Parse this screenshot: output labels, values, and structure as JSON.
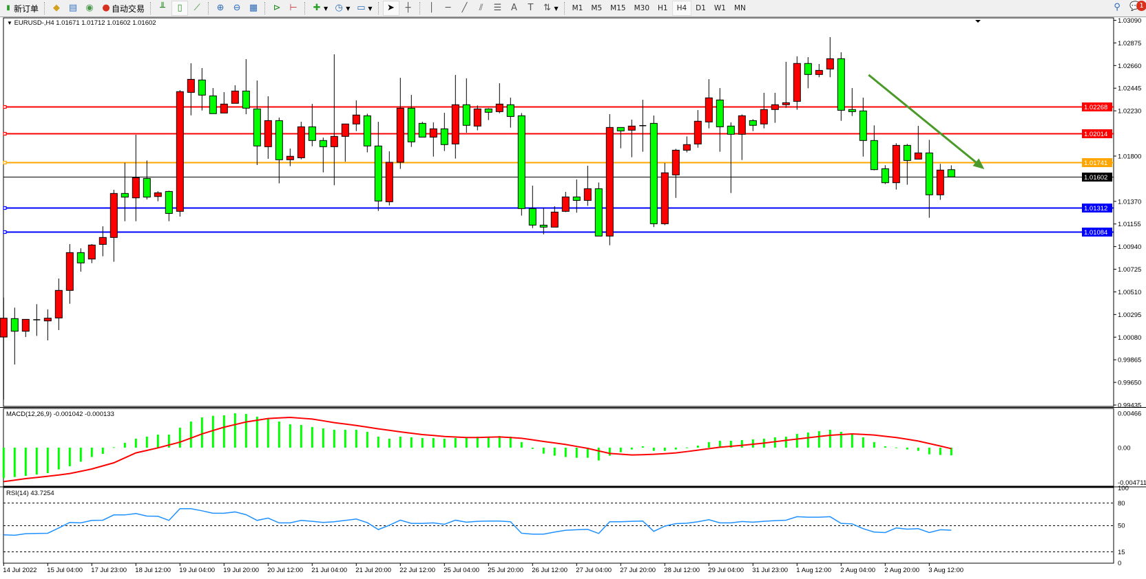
{
  "toolbar": {
    "new_order_label": "新订单",
    "auto_trading_label": "自动交易",
    "icons": [
      "new-order-icon",
      "market-watch-icon",
      "navigator-icon",
      "signals-icon",
      "auto-trading-icon",
      "bar-chart-icon",
      "candlestick-icon",
      "line-chart-icon",
      "zoom-in-icon",
      "zoom-out-icon",
      "tile-windows-icon",
      "chart-shift-icon",
      "autoscroll-icon",
      "indicators-icon",
      "periods-icon",
      "templates-icon",
      "cursor-icon",
      "crosshair-icon",
      "vertical-line-icon",
      "horizontal-line-icon",
      "trendline-icon",
      "fibonacci-icon",
      "fibo-fan-icon",
      "text-icon",
      "text-label-icon",
      "arrows-icon",
      "search-icon",
      "notification-icon"
    ],
    "timeframes": [
      "M1",
      "M5",
      "M15",
      "M30",
      "H1",
      "H4",
      "D1",
      "W1",
      "MN"
    ],
    "active_timeframe": "H4",
    "notification_count": "1"
  },
  "chart": {
    "header": "EURUSD-,H4  1.01671 1.01712 1.01602 1.01602",
    "macd_label": "MACD(12,26,9) -0.001042 -0.000133",
    "rsi_label": "RSI(14) 43.7254"
  },
  "colors": {
    "bull": "#ff0000",
    "bear": "#00ff00",
    "resistance": "#ff0000",
    "pivot": "#ffa500",
    "support": "#0000ff",
    "current": "#000000",
    "macd_hist": "#00ff00",
    "macd_signal": "#ff0000",
    "rsi": "#1e90ff",
    "arrow": "#4a9a2a"
  },
  "chart_data": [
    {
      "type": "candlestick",
      "symbol": "EURUSD-",
      "timeframe": "H4",
      "bullish_color": "red",
      "bearish_color": "green",
      "ylim": [
        0.99435,
        1.0309
      ],
      "y_ticks": [
        "1.03090",
        "1.02875",
        "1.02660",
        "1.02445",
        "1.02230",
        "1.01800",
        "1.01370",
        "1.01155",
        "1.00940",
        "1.00725",
        "1.00510",
        "1.00295",
        "1.00080",
        "0.99865",
        "0.99650",
        "0.99435"
      ],
      "x_tick_labels": [
        {
          "bar": 0,
          "label": "14 Jul 2022"
        },
        {
          "bar": 4,
          "label": "15 Jul 04:00"
        },
        {
          "bar": 8,
          "label": "17 Jul 23:00"
        },
        {
          "bar": 12,
          "label": "18 Jul 12:00"
        },
        {
          "bar": 16,
          "label": "19 Jul 04:00"
        },
        {
          "bar": 20,
          "label": "19 Jul 20:00"
        },
        {
          "bar": 24,
          "label": "20 Jul 12:00"
        },
        {
          "bar": 28,
          "label": "21 Jul 04:00"
        },
        {
          "bar": 32,
          "label": "21 Jul 20:00"
        },
        {
          "bar": 36,
          "label": "22 Jul 12:00"
        },
        {
          "bar": 40,
          "label": "25 Jul 04:00"
        },
        {
          "bar": 44,
          "label": "25 Jul 20:00"
        },
        {
          "bar": 48,
          "label": "26 Jul 12:00"
        },
        {
          "bar": 52,
          "label": "27 Jul 04:00"
        },
        {
          "bar": 56,
          "label": "27 Jul 20:00"
        },
        {
          "bar": 60,
          "label": "28 Jul 12:00"
        },
        {
          "bar": 64,
          "label": "29 Jul 04:00"
        },
        {
          "bar": 68,
          "label": "31 Jul 23:00"
        },
        {
          "bar": 72,
          "label": "1 Aug 12:00"
        },
        {
          "bar": 76,
          "label": "2 Aug 04:00"
        },
        {
          "bar": 80,
          "label": "2 Aug 20:00"
        },
        {
          "bar": 84,
          "label": "3 Aug 12:00"
        }
      ],
      "levels": [
        {
          "price": "1.02268",
          "kind": "resistance"
        },
        {
          "price": "1.02014",
          "kind": "resistance"
        },
        {
          "price": "1.01741",
          "kind": "pivot"
        },
        {
          "price": "1.01602",
          "kind": "current"
        },
        {
          "price": "1.01312",
          "kind": "support"
        },
        {
          "price": "1.01084",
          "kind": "support"
        }
      ],
      "arrow": {
        "from": {
          "bar": 78.5,
          "price": 1.02571
        },
        "to": {
          "bar": 89,
          "price": 1.01676
        }
      },
      "ohlc": [
        [
          1.00081,
          1.00456,
          0.99485,
          1.0026
        ],
        [
          1.00256,
          1.0036,
          0.9982,
          1.00136
        ],
        [
          1.00136,
          1.00249,
          1.00081,
          1.00249
        ],
        [
          1.00245,
          1.00393,
          1.00092,
          1.00245
        ],
        [
          1.00234,
          1.00343,
          1.00049,
          1.0026
        ],
        [
          1.00262,
          1.00637,
          1.00147,
          1.00524
        ],
        [
          1.00524,
          1.00964,
          1.00397,
          1.00883
        ],
        [
          1.00883,
          1.00924,
          1.00702,
          1.00785
        ],
        [
          1.00822,
          1.00964,
          1.00783,
          1.00955
        ],
        [
          1.00961,
          1.01133,
          1.00848,
          1.01027
        ],
        [
          1.01027,
          1.0148,
          1.00796,
          1.01445
        ],
        [
          1.01445,
          1.01737,
          1.01181,
          1.0141
        ],
        [
          1.01403,
          1.02002,
          1.01181,
          1.01595
        ],
        [
          1.01588,
          1.01758,
          1.01388,
          1.0141
        ],
        [
          1.01416,
          1.01466,
          1.01371,
          1.01451
        ],
        [
          1.01464,
          1.01471,
          1.01181,
          1.01255
        ],
        [
          1.01275,
          1.02427,
          1.01225,
          1.02412
        ],
        [
          1.02405,
          1.02682,
          1.02187,
          1.02529
        ],
        [
          1.02523,
          1.02636,
          1.02233,
          1.02379
        ],
        [
          1.02372,
          1.02446,
          1.02203,
          1.02203
        ],
        [
          1.02209,
          1.02407,
          1.02209,
          1.02294
        ],
        [
          1.02301,
          1.02473,
          1.02301,
          1.02418
        ],
        [
          1.02418,
          1.02721,
          1.02198,
          1.02255
        ],
        [
          1.02248,
          1.02518,
          1.01715,
          1.01896
        ],
        [
          1.01889,
          1.02368,
          1.01774,
          1.02137
        ],
        [
          1.02137,
          1.02166,
          1.01541,
          1.01765
        ],
        [
          1.01765,
          1.01872,
          1.01704,
          1.01798
        ],
        [
          1.01784,
          1.02126,
          1.01769,
          1.02078
        ],
        [
          1.02078,
          1.02296,
          1.01893,
          1.01948
        ],
        [
          1.01948,
          1.01976,
          1.01645,
          1.01889
        ],
        [
          1.01889,
          1.02767,
          1.01523,
          1.01987
        ],
        [
          1.01987,
          1.02105,
          1.01747,
          1.02105
        ],
        [
          1.02105,
          1.02329,
          1.02037,
          1.0219
        ],
        [
          1.02183,
          1.02203,
          1.01835,
          1.01896
        ],
        [
          1.01896,
          1.02126,
          1.01279,
          1.01373
        ],
        [
          1.01366,
          1.01845,
          1.01331,
          1.01741
        ],
        [
          1.01741,
          1.02544,
          1.01678,
          1.02255
        ],
        [
          1.02255,
          1.02381,
          1.01887,
          1.01935
        ],
        [
          1.02111,
          1.02126,
          1.0198,
          1.0198
        ],
        [
          1.0198,
          1.0212,
          1.01795,
          1.02059
        ],
        [
          1.02059,
          1.02211,
          1.01848,
          1.01909
        ],
        [
          1.01915,
          1.02571,
          1.01776,
          1.02288
        ],
        [
          1.02288,
          1.02538,
          1.02022,
          1.02092
        ],
        [
          1.02085,
          1.02281,
          1.02044,
          1.02248
        ],
        [
          1.02248,
          1.02255,
          1.02142,
          1.02216
        ],
        [
          1.02222,
          1.02492,
          1.02207,
          1.02294
        ],
        [
          1.02288,
          1.02355,
          1.0207,
          1.02176
        ],
        [
          1.02183,
          1.02209,
          1.01234,
          1.01301
        ],
        [
          1.01301,
          1.01519,
          1.01116,
          1.01144
        ],
        [
          1.01144,
          1.01308,
          1.01057,
          1.01125
        ],
        [
          1.01125,
          1.01323,
          1.01125,
          1.01268
        ],
        [
          1.01275,
          1.0146,
          1.01268,
          1.01412
        ],
        [
          1.01412,
          1.01578,
          1.01262,
          1.01379
        ],
        [
          1.01379,
          1.01708,
          1.01327,
          1.0149
        ],
        [
          1.0149,
          1.01549,
          1.0104,
          1.0104
        ],
        [
          1.0104,
          1.02198,
          1.00953,
          1.02072
        ],
        [
          1.02072,
          1.02072,
          1.01874,
          1.02039
        ],
        [
          1.02046,
          1.02146,
          1.01789,
          1.02085
        ],
        [
          1.02089,
          1.02335,
          1.01841,
          1.02089
        ],
        [
          1.02111,
          1.02185,
          1.01125,
          1.01157
        ],
        [
          1.01157,
          1.01734,
          1.01144,
          1.01641
        ],
        [
          1.01621,
          1.01869,
          1.01403,
          1.01856
        ],
        [
          1.01856,
          1.01987,
          1.01835,
          1.01909
        ],
        [
          1.01915,
          1.02237,
          1.0188,
          1.02131
        ],
        [
          1.02124,
          1.02531,
          1.02063,
          1.02353
        ],
        [
          1.02333,
          1.02446,
          1.01841,
          1.02078
        ],
        [
          1.02085,
          1.0212,
          1.01449,
          1.02007
        ],
        [
          1.02007,
          1.02196,
          1.01763,
          1.02183
        ],
        [
          1.02137,
          1.0215,
          1.02037,
          1.02092
        ],
        [
          1.02105,
          1.02401,
          1.02063,
          1.02242
        ],
        [
          1.02242,
          1.02401,
          1.02116,
          1.02288
        ],
        [
          1.02288,
          1.02695,
          1.02259,
          1.02307
        ],
        [
          1.0232,
          1.02747,
          1.0224,
          1.0268
        ],
        [
          1.0268,
          1.0274,
          1.02444,
          1.02575
        ],
        [
          1.02575,
          1.02675,
          1.02549,
          1.02614
        ],
        [
          1.02627,
          1.0293,
          1.02549,
          1.02725
        ],
        [
          1.02725,
          1.02786,
          1.02135,
          1.02235
        ],
        [
          1.02242,
          1.02446,
          1.02181,
          1.02222
        ],
        [
          1.02229,
          1.02355,
          1.01795,
          1.01948
        ],
        [
          1.01948,
          1.02092,
          1.01665,
          1.01671
        ],
        [
          1.0168,
          1.01713,
          1.01534,
          1.01547
        ],
        [
          1.01547,
          1.01922,
          1.01482,
          1.01902
        ],
        [
          1.01902,
          1.01915,
          1.01528,
          1.01758
        ],
        [
          1.01771,
          1.02087,
          1.01771,
          1.0183
        ],
        [
          1.0183,
          1.01954,
          1.01214,
          1.01432
        ],
        [
          1.01432,
          1.01726,
          1.01384,
          1.01667
        ],
        [
          1.01671,
          1.01712,
          1.01602,
          1.01602
        ]
      ]
    },
    {
      "type": "bar+line",
      "name": "MACD(12,26,9)",
      "ylim": [
        -0.004711,
        0.00466
      ],
      "y_ticks": [
        "0.00466",
        "0.00",
        "-0.004711"
      ],
      "histogram": [
        -0.00413,
        -0.00398,
        -0.00382,
        -0.00364,
        -0.00345,
        -0.00295,
        -0.00252,
        -0.0019,
        -0.00127,
        -0.00084,
        6e-05,
        0.00065,
        0.00121,
        0.00149,
        0.00177,
        0.00177,
        0.0027,
        0.00354,
        0.0041,
        0.00432,
        0.00438,
        0.00466,
        0.00457,
        0.00419,
        0.00395,
        0.00354,
        0.00317,
        0.00308,
        0.0028,
        0.00261,
        0.00242,
        0.00242,
        0.00242,
        0.00214,
        0.00149,
        0.00121,
        0.00149,
        0.0014,
        0.0013,
        0.0013,
        0.00121,
        0.0013,
        0.0013,
        0.00149,
        0.00149,
        0.00158,
        0.00149,
        0.00075,
        -0.00016,
        -0.00081,
        -0.00109,
        -0.00127,
        -0.00137,
        -0.00137,
        -0.00174,
        -0.00109,
        -0.00062,
        -0.00025,
        0.00019,
        -0.00043,
        -0.00043,
        -0.00025,
        3e-05,
        0.00028,
        0.00075,
        0.00093,
        0.00093,
        0.00103,
        0.00112,
        0.00121,
        0.0014,
        0.00149,
        0.00186,
        0.00205,
        0.00224,
        0.00242,
        0.00214,
        0.00177,
        0.0014,
        0.00075,
        0.00019,
        3e-05,
        -0.00025,
        -0.00043,
        -0.0009,
        -0.00099,
        -0.001042
      ],
      "signal": [
        -0.0046,
        -0.0044,
        -0.00419,
        -0.00404,
        -0.00388,
        -0.0037,
        -0.00351,
        -0.0032,
        -0.00289,
        -0.00247,
        -0.00205,
        -0.00138,
        -0.00071,
        -0.00037,
        -3e-05,
        0.00036,
        0.00075,
        0.0013,
        0.00186,
        0.00232,
        0.00277,
        0.00313,
        0.00348,
        0.00372,
        0.00395,
        0.00403,
        0.0041,
        0.00399,
        0.00388,
        0.00364,
        0.00339,
        0.0032,
        0.00301,
        0.00278,
        0.00255,
        0.00235,
        0.00214,
        0.00196,
        0.00177,
        0.00165,
        0.00152,
        0.00145,
        0.00137,
        0.00137,
        0.00142,
        0.00146,
        0.00137,
        0.00127,
        0.00106,
        0.00084,
        0.00064,
        0.00043,
        0.00017,
        -9e-05,
        -0.00044,
        -0.00078,
        -0.00089,
        -0.00099,
        -0.00095,
        -0.0009,
        -0.00081,
        -0.00071,
        -0.00053,
        -0.00034,
        -0.00014,
        6e-05,
        0.00019,
        0.00031,
        0.00047,
        0.00062,
        0.00081,
        0.00099,
        0.00117,
        0.00134,
        0.00151,
        0.00168,
        0.00177,
        0.00186,
        0.00179,
        0.00171,
        0.00154,
        0.00137,
        0.00114,
        0.0009,
        0.00056,
        0.00022,
        -0.000133
      ]
    },
    {
      "type": "line",
      "name": "RSI(14)",
      "ylim": [
        0,
        100
      ],
      "y_ticks": [
        "100",
        "80",
        "50",
        "15",
        "0"
      ],
      "levels": [
        80,
        50,
        15
      ],
      "values": [
        37.5,
        36.9,
        39.0,
        39.3,
        39.6,
        46.6,
        54.0,
        53.4,
        56.7,
        57.0,
        64.0,
        64.0,
        65.9,
        62.5,
        62.2,
        56.7,
        72.3,
        72.3,
        69.5,
        66.2,
        66.2,
        68.0,
        64.3,
        56.7,
        59.8,
        53.4,
        53.4,
        56.7,
        55.5,
        54.0,
        54.9,
        56.7,
        58.5,
        53.7,
        44.5,
        50.3,
        57.0,
        52.7,
        52.7,
        53.4,
        51.5,
        57.0,
        54.3,
        55.5,
        55.8,
        55.8,
        54.9,
        39.6,
        38.4,
        38.4,
        41.2,
        43.6,
        44.2,
        44.8,
        39.3,
        54.9,
        54.9,
        55.5,
        55.8,
        42.1,
        49.1,
        52.4,
        53.0,
        54.9,
        57.6,
        53.4,
        53.4,
        55.2,
        54.3,
        55.5,
        56.4,
        57.0,
        61.6,
        61.0,
        61.0,
        61.6,
        52.7,
        52.1,
        45.7,
        41.2,
        40.5,
        46.6,
        45.1,
        45.7,
        40.5,
        44.2,
        43.7254
      ]
    }
  ]
}
